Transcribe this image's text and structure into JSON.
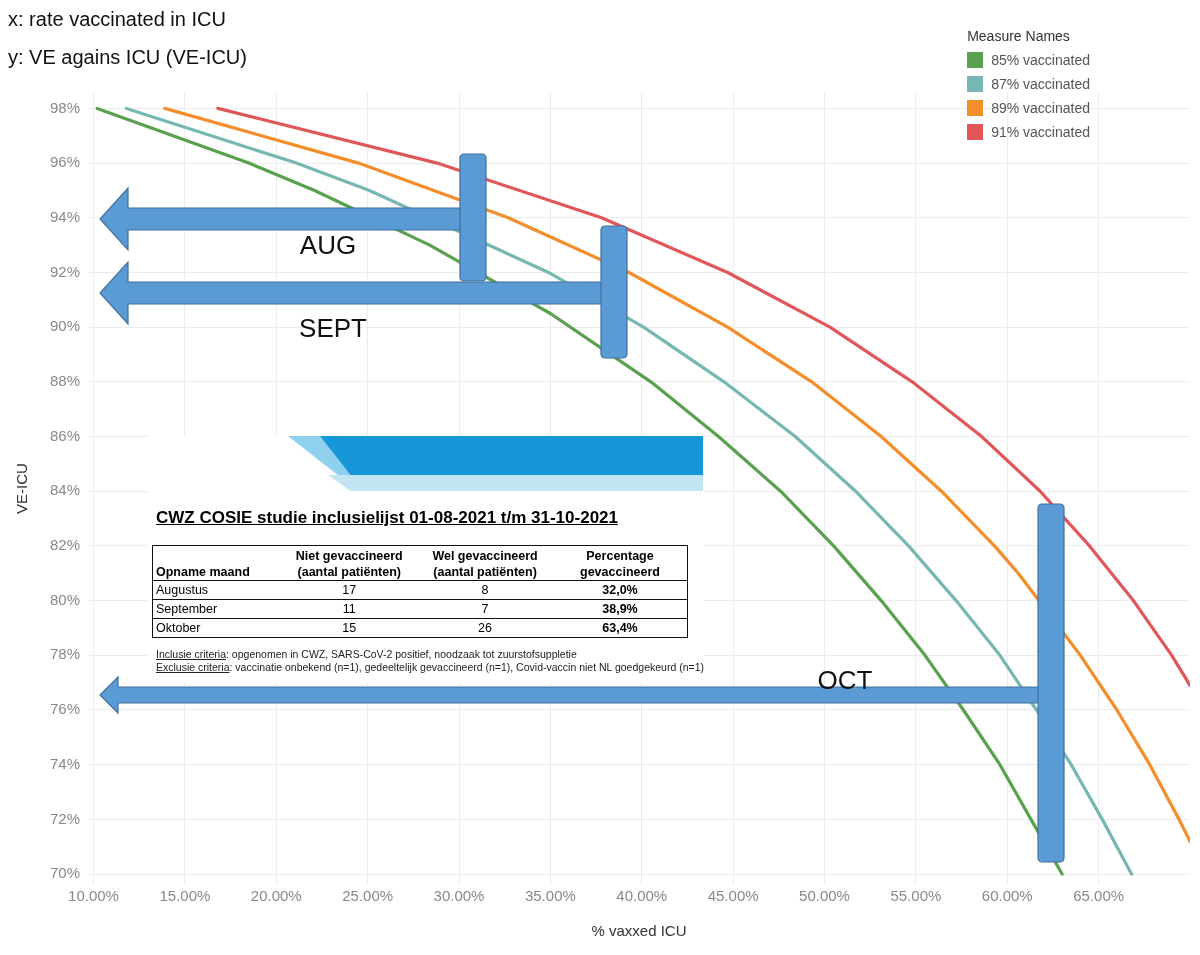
{
  "chart_data": {
    "type": "line",
    "title": "x: rate vaccinated in ICU",
    "subtitle": "y: VE agains ICU (VE-ICU)",
    "xlabel": "% vaxxed ICU",
    "ylabel": "VE-ICU",
    "legend_title": "Measure Names",
    "legend": "top right",
    "grid": true,
    "line_style": "solid",
    "xlim": [
      9.7,
      70
    ],
    "xticks": [
      {
        "value": 10,
        "label": "10.00%"
      },
      {
        "value": 15,
        "label": "15.00%"
      },
      {
        "value": 20,
        "label": "20.00%"
      },
      {
        "value": 25,
        "label": "25.00%"
      },
      {
        "value": 30,
        "label": "30.00%"
      },
      {
        "value": 35,
        "label": "35.00%"
      },
      {
        "value": 40,
        "label": "40.00%"
      },
      {
        "value": 45,
        "label": "45.00%"
      },
      {
        "value": 50,
        "label": "50.00%"
      },
      {
        "value": 55,
        "label": "55.00%"
      },
      {
        "value": 60,
        "label": "60.00%"
      },
      {
        "value": 65,
        "label": "65.00%"
      }
    ],
    "ylim": [
      69.6,
      98.6
    ],
    "yticks": [
      {
        "value": 70,
        "label": "70%"
      },
      {
        "value": 72,
        "label": "72%"
      },
      {
        "value": 74,
        "label": "74%"
      },
      {
        "value": 76,
        "label": "76%"
      },
      {
        "value": 78,
        "label": "78%"
      },
      {
        "value": 80,
        "label": "80%"
      },
      {
        "value": 82,
        "label": "82%"
      },
      {
        "value": 84,
        "label": "84%"
      },
      {
        "value": 86,
        "label": "86%"
      },
      {
        "value": 88,
        "label": "88%"
      },
      {
        "value": 90,
        "label": "90%"
      },
      {
        "value": 92,
        "label": "92%"
      },
      {
        "value": 94,
        "label": "94%"
      },
      {
        "value": 96,
        "label": "96%"
      },
      {
        "value": 98,
        "label": "98%"
      }
    ],
    "series": [
      {
        "name": "85% vaccinated",
        "color": "#59a14f",
        "x": [
          10.2,
          18.5,
          22.1,
          28.4,
          35.0,
          40.5,
          44.2,
          47.6,
          50.5,
          53.1,
          55.5,
          57.6,
          59.6,
          61.3,
          63.0
        ],
        "values": [
          98,
          96,
          95,
          93,
          90.5,
          88,
          86,
          84,
          82,
          80,
          78,
          76,
          74,
          72,
          70
        ]
      },
      {
        "name": "87% vaccinated",
        "color": "#76b7b2",
        "x": [
          11.8,
          21.1,
          25.1,
          34.9,
          40.1,
          44.5,
          48.4,
          51.7,
          54.6,
          57.2,
          59.6,
          61.6,
          63.5,
          65.2,
          66.8
        ],
        "values": [
          98,
          96,
          95,
          92,
          90,
          88,
          86,
          84,
          82,
          80,
          78,
          76,
          74,
          72,
          70
        ]
      },
      {
        "name": "89% vaccinated",
        "color": "#f28e2b",
        "x": [
          13.9,
          24.5,
          32.7,
          39.3,
          44.7,
          49.3,
          53.1,
          56.4,
          59.3,
          60.6,
          64.0,
          66.0,
          67.8,
          69.4,
          70.0
        ],
        "values": [
          98,
          96,
          94,
          92,
          90,
          88,
          86,
          84,
          82,
          81,
          78,
          76,
          74,
          72,
          71.2
        ]
      },
      {
        "name": "91% vaccinated",
        "color": "#e15759",
        "x": [
          16.8,
          28.8,
          37.8,
          44.7,
          50.3,
          54.8,
          58.6,
          61.8,
          64.5,
          66.9,
          69.0,
          70.0
        ],
        "values": [
          98,
          96,
          94,
          92,
          90,
          88,
          86,
          84,
          82,
          80,
          78,
          76.9
        ]
      }
    ],
    "annotations": [
      "AUG",
      "SEPT",
      "OCT",
      "CWZ COSIE studie inclusielijst 01-08-2021 t/m 31-10-2021",
      "Opname maand",
      "Niet gevaccineerd (aantal patiënten)",
      "Wel gevaccineerd (aantal patiënten)",
      "Percentage gevaccineerd",
      "Augustus",
      "17",
      "8",
      "32,0%",
      "September",
      "11",
      "7",
      "38,9%",
      "Oktober",
      "15",
      "26",
      "63,4%",
      "Inclusie criteria: opgenomen in CWZ, SARS-CoV-2 positief, noodzaak tot zuurstofsuppletie",
      "Exclusie criteria: vaccinatie onbekend (n=1), gedeeltelijk gevaccineerd (n=1), Covid-vaccin niet NL goedgekeurd (n=1)"
    ]
  }
}
